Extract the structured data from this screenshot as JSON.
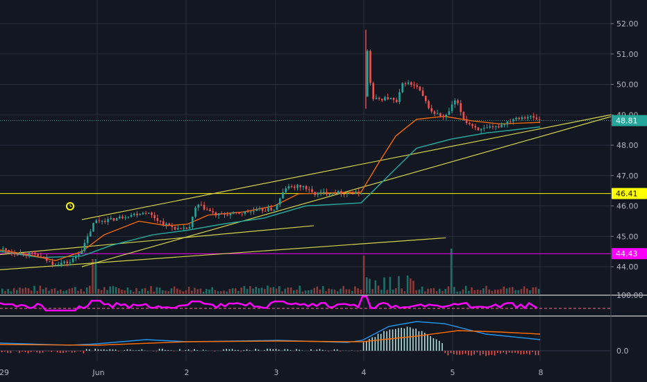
{
  "chart_data": {
    "type": "candlestick",
    "price_axis": {
      "ticks": [
        "52.00",
        "51.00",
        "50.00",
        "49.00",
        "48.00",
        "47.00",
        "46.00",
        "45.00",
        "44.00"
      ],
      "range": [
        43.3,
        52.7
      ]
    },
    "time_axis": {
      "ticks": [
        "29",
        "Jun",
        "2",
        "3",
        "4",
        "5",
        "8"
      ]
    },
    "badges": [
      {
        "label": "48.81",
        "value": 48.81,
        "bg": "#26a69a",
        "fg": "#ffffff"
      },
      {
        "label": "46.41",
        "value": 46.41,
        "bg": "#ffff00",
        "fg": "#000000"
      },
      {
        "label": "44.43",
        "value": 44.43,
        "bg": "#ff00ff",
        "fg": "#ffffff"
      }
    ],
    "horizontal_lines": [
      {
        "value": 46.41,
        "color": "#ffff00"
      },
      {
        "value": 44.43,
        "color": "#ff00ff"
      },
      {
        "value": 48.81,
        "color": "#26a69a",
        "style": "dotted"
      }
    ],
    "trendlines": [
      {
        "from": [
          118,
          44.0
        ],
        "to": [
          880,
          48.94
        ]
      },
      {
        "from": [
          0,
          44.4
        ],
        "to": [
          452,
          45.35
        ]
      },
      {
        "from": [
          0,
          43.9
        ],
        "to": [
          642,
          44.95
        ]
      },
      {
        "from": [
          118,
          45.55
        ],
        "to": [
          880,
          49.0
        ]
      }
    ],
    "price_path": [
      [
        0,
        44.6
      ],
      [
        20,
        44.45
      ],
      [
        50,
        44.4
      ],
      [
        75,
        44.1
      ],
      [
        100,
        44.15
      ],
      [
        118,
        44.6
      ],
      [
        135,
        45.5
      ],
      [
        160,
        45.55
      ],
      [
        185,
        45.7
      ],
      [
        210,
        45.8
      ],
      [
        235,
        45.4
      ],
      [
        260,
        45.2
      ],
      [
        272,
        45.3
      ],
      [
        282,
        46.05
      ],
      [
        295,
        45.9
      ],
      [
        310,
        45.7
      ],
      [
        340,
        45.75
      ],
      [
        370,
        45.85
      ],
      [
        395,
        45.9
      ],
      [
        410,
        46.6
      ],
      [
        435,
        46.65
      ],
      [
        450,
        46.4
      ],
      [
        480,
        46.45
      ],
      [
        515,
        46.4
      ],
      [
        522,
        46.5
      ],
      [
        527,
        51.1
      ],
      [
        535,
        49.5
      ],
      [
        560,
        49.55
      ],
      [
        570,
        49.4
      ],
      [
        580,
        50.1
      ],
      [
        600,
        49.9
      ],
      [
        620,
        49.1
      ],
      [
        640,
        48.9
      ],
      [
        655,
        49.5
      ],
      [
        668,
        48.8
      ],
      [
        690,
        48.5
      ],
      [
        715,
        48.6
      ],
      [
        740,
        48.9
      ],
      [
        760,
        48.95
      ],
      [
        778,
        48.81
      ]
    ],
    "ma_fast": [
      [
        0,
        44.55
      ],
      [
        40,
        44.4
      ],
      [
        80,
        44.2
      ],
      [
        118,
        44.5
      ],
      [
        150,
        45.05
      ],
      [
        200,
        45.5
      ],
      [
        240,
        45.35
      ],
      [
        270,
        45.4
      ],
      [
        300,
        45.7
      ],
      [
        350,
        45.8
      ],
      [
        395,
        46.0
      ],
      [
        430,
        46.4
      ],
      [
        520,
        46.45
      ],
      [
        545,
        47.4
      ],
      [
        570,
        48.3
      ],
      [
        600,
        48.85
      ],
      [
        640,
        48.95
      ],
      [
        680,
        48.8
      ],
      [
        720,
        48.7
      ],
      [
        778,
        48.75
      ]
    ],
    "ma_slow": [
      [
        0,
        44.5
      ],
      [
        60,
        44.3
      ],
      [
        118,
        44.35
      ],
      [
        160,
        44.7
      ],
      [
        220,
        45.05
      ],
      [
        270,
        45.2
      ],
      [
        320,
        45.4
      ],
      [
        380,
        45.6
      ],
      [
        440,
        46.0
      ],
      [
        520,
        46.1
      ],
      [
        560,
        47.0
      ],
      [
        600,
        47.9
      ],
      [
        650,
        48.2
      ],
      [
        700,
        48.4
      ],
      [
        778,
        48.6
      ]
    ],
    "volume_bars": [
      {
        "x_from": 0,
        "x_to": 778
      }
    ],
    "oscillator_panel": {
      "tick": "100.00",
      "color": "#ff00ff"
    },
    "macd_panel": {
      "tick": "0.0",
      "macd_color": "#2196f3",
      "signal_color": "#ff6d00"
    }
  },
  "colors": {
    "up": "#26a69a",
    "down": "#ef5350",
    "ma_fast": "#ff6d00",
    "ma_slow": "#26a69a",
    "trend": "#d4d44a",
    "grid": "#2a2e39",
    "alarm": "#ffff00"
  },
  "icons": {
    "alarm": "alarm-clock-icon"
  }
}
